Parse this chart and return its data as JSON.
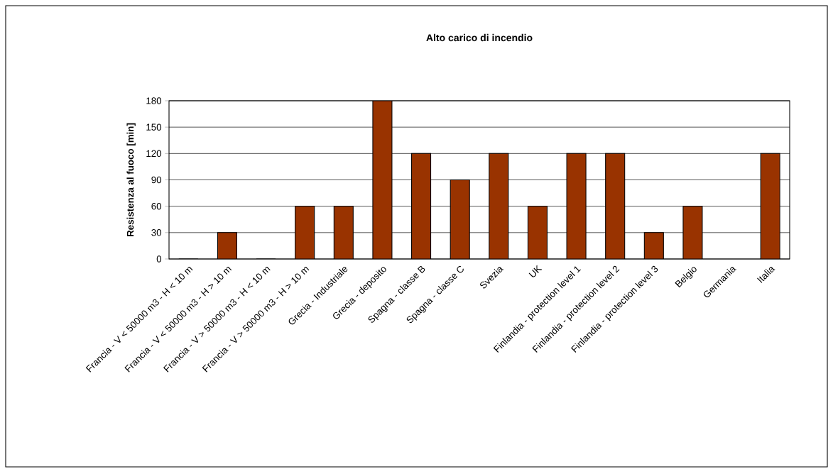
{
  "chart_data": {
    "type": "bar",
    "title": "Alto carico di incendio",
    "ylabel": "Resistenza al fuoco [min]",
    "categories": [
      "Francia - V < 50000 m3 - H < 10 m",
      "Francia - V < 50000 m3 - H > 10 m",
      "Francia - V > 50000 m3 - H < 10 m",
      "Francia - V > 50000 m3 - H > 10 m",
      "Grecia - Industriale",
      "Grecia - deposito",
      "Spagna - classe B",
      "Spagna - classe C",
      "Svezia",
      "UK",
      "Finlandia - protection level 1",
      "Finlandia - protection level 2",
      "Finlandia - protection level 3",
      "Belgio",
      "Germania",
      "Italia"
    ],
    "values": [
      0,
      30,
      0,
      60,
      60,
      180,
      120,
      90,
      120,
      60,
      120,
      120,
      30,
      60,
      null,
      120
    ],
    "color": "#993300",
    "ylim": [
      0,
      180
    ],
    "yticks": [
      0,
      30,
      60,
      90,
      120,
      150,
      180
    ],
    "grid": "y"
  }
}
